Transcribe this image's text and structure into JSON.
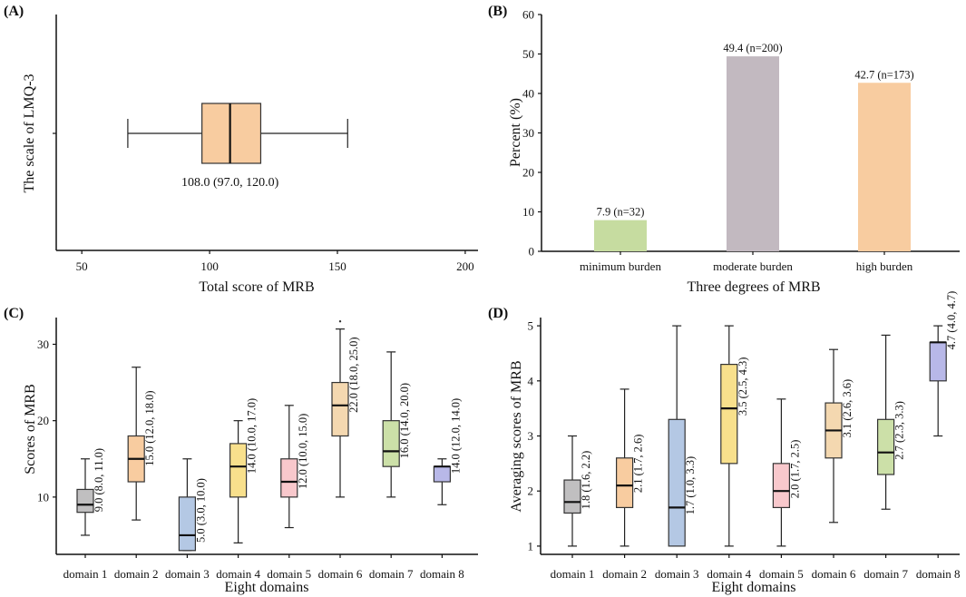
{
  "chart_data": [
    {
      "panel": "(A)",
      "type": "boxplot",
      "orientation": "horizontal",
      "xlabel": "Total score of MRB",
      "ylabel": "The scale of LMQ-3",
      "xlim": [
        40,
        205
      ],
      "xticks": [
        50,
        100,
        150,
        200
      ],
      "box": {
        "min": 68,
        "q1": 97.0,
        "median": 108.0,
        "q3": 120.0,
        "max": 154
      },
      "label": "108.0 (97.0, 120.0)",
      "color": "#f8cca0"
    },
    {
      "panel": "(B)",
      "type": "bar",
      "xlabel": "Three degrees of MRB",
      "ylabel": "Percent (%)",
      "ylim": [
        0,
        60
      ],
      "yticks": [
        0,
        10,
        20,
        30,
        40,
        50,
        60
      ],
      "categories": [
        "minimum burden",
        "moderate burden",
        "high burden"
      ],
      "values": [
        7.9,
        49.4,
        42.7
      ],
      "labels": [
        "7.9 (n=32)",
        "49.4 (n=200)",
        "42.7 (n=173)"
      ],
      "colors": [
        "#c6dca0",
        "#c2b9c0",
        "#f8cca0"
      ]
    },
    {
      "panel": "(C)",
      "type": "boxplot",
      "orientation": "vertical",
      "xlabel": "Eight domains",
      "ylabel": "Scores of MRB",
      "ylim": [
        2.5,
        33.5
      ],
      "yticks": [
        10,
        20,
        30
      ],
      "categories": [
        "domain 1",
        "domain 2",
        "domain 3",
        "domain 4",
        "domain 5",
        "domain 6",
        "domain 7",
        "domain 8"
      ],
      "boxes": [
        {
          "min": 5,
          "q1": 8.0,
          "median": 9.0,
          "q3": 11.0,
          "max": 15
        },
        {
          "min": 7,
          "q1": 12.0,
          "median": 15.0,
          "q3": 18.0,
          "max": 27
        },
        {
          "min": 3,
          "q1": 3.0,
          "median": 5.0,
          "q3": 10.0,
          "max": 15
        },
        {
          "min": 4,
          "q1": 10.0,
          "median": 14.0,
          "q3": 17.0,
          "max": 20
        },
        {
          "min": 6,
          "q1": 10.0,
          "median": 12.0,
          "q3": 15.0,
          "max": 22
        },
        {
          "min": 10,
          "q1": 18.0,
          "median": 22.0,
          "q3": 25.0,
          "max": 32
        },
        {
          "min": 10,
          "q1": 14.0,
          "median": 16.0,
          "q3": 20.0,
          "max": 29
        },
        {
          "min": 9,
          "q1": 12.0,
          "median": 14.0,
          "q3": 14.0,
          "max": 15
        }
      ],
      "outliers": [
        {
          "index": 5,
          "value": 33
        }
      ],
      "labels": [
        "9.0 (8.0, 11.0)",
        "15.0 (12.0, 18.0)",
        "5.0 (3.0, 10.0)",
        "14.0 (10.0, 17.0)",
        "12.0 (10.0, 15.0)",
        "22.0 (18.0, 25.0)",
        "16.0 (14.0, 20.0)",
        "14.0 (12.0, 14.0)"
      ],
      "colors": [
        "#c0bfc0",
        "#f8cca0",
        "#b4c8e4",
        "#f8e08c",
        "#f8c8cc",
        "#f4d8b0",
        "#cce0a8",
        "#b8b8e8"
      ]
    },
    {
      "panel": "(D)",
      "type": "boxplot",
      "orientation": "vertical",
      "xlabel": "Eight domains",
      "ylabel": "Averaging scores of MRB",
      "ylim": [
        0.85,
        5.15
      ],
      "yticks": [
        1,
        2,
        3,
        4,
        5
      ],
      "categories": [
        "domain 1",
        "domain 2",
        "domain 3",
        "domain 4",
        "domain 5",
        "domain 6",
        "domain 7",
        "domain 8"
      ],
      "boxes": [
        {
          "min": 1.0,
          "q1": 1.6,
          "median": 1.8,
          "q3": 2.2,
          "max": 3.0
        },
        {
          "min": 1.0,
          "q1": 1.7,
          "median": 2.1,
          "q3": 2.6,
          "max": 3.85
        },
        {
          "min": 1.0,
          "q1": 1.0,
          "median": 1.7,
          "q3": 3.3,
          "max": 5.0
        },
        {
          "min": 1.0,
          "q1": 2.5,
          "median": 3.5,
          "q3": 4.3,
          "max": 5.0
        },
        {
          "min": 1.0,
          "q1": 1.7,
          "median": 2.0,
          "q3": 2.5,
          "max": 3.67
        },
        {
          "min": 1.43,
          "q1": 2.6,
          "median": 3.1,
          "q3": 3.6,
          "max": 4.57
        },
        {
          "min": 1.67,
          "q1": 2.3,
          "median": 2.7,
          "q3": 3.3,
          "max": 4.83
        },
        {
          "min": 3.0,
          "q1": 4.0,
          "median": 4.7,
          "q3": 4.7,
          "max": 5.0
        }
      ],
      "labels": [
        "1.8 (1.6, 2.2)",
        "2.1 (1.7, 2.6)",
        "1.7 (1.0, 3.3)",
        "3.5 (2.5, 4.3)",
        "2.0 (1.7, 2.5)",
        "3.1 (2.6, 3.6)",
        "2.7 (2.3, 3.3)",
        "4.7 (4.0, 4.7)"
      ],
      "colors": [
        "#c0bfc0",
        "#f8cca0",
        "#b4c8e4",
        "#f8e08c",
        "#f8c8cc",
        "#f4d8b0",
        "#cce0a8",
        "#b8b8e8"
      ]
    }
  ]
}
